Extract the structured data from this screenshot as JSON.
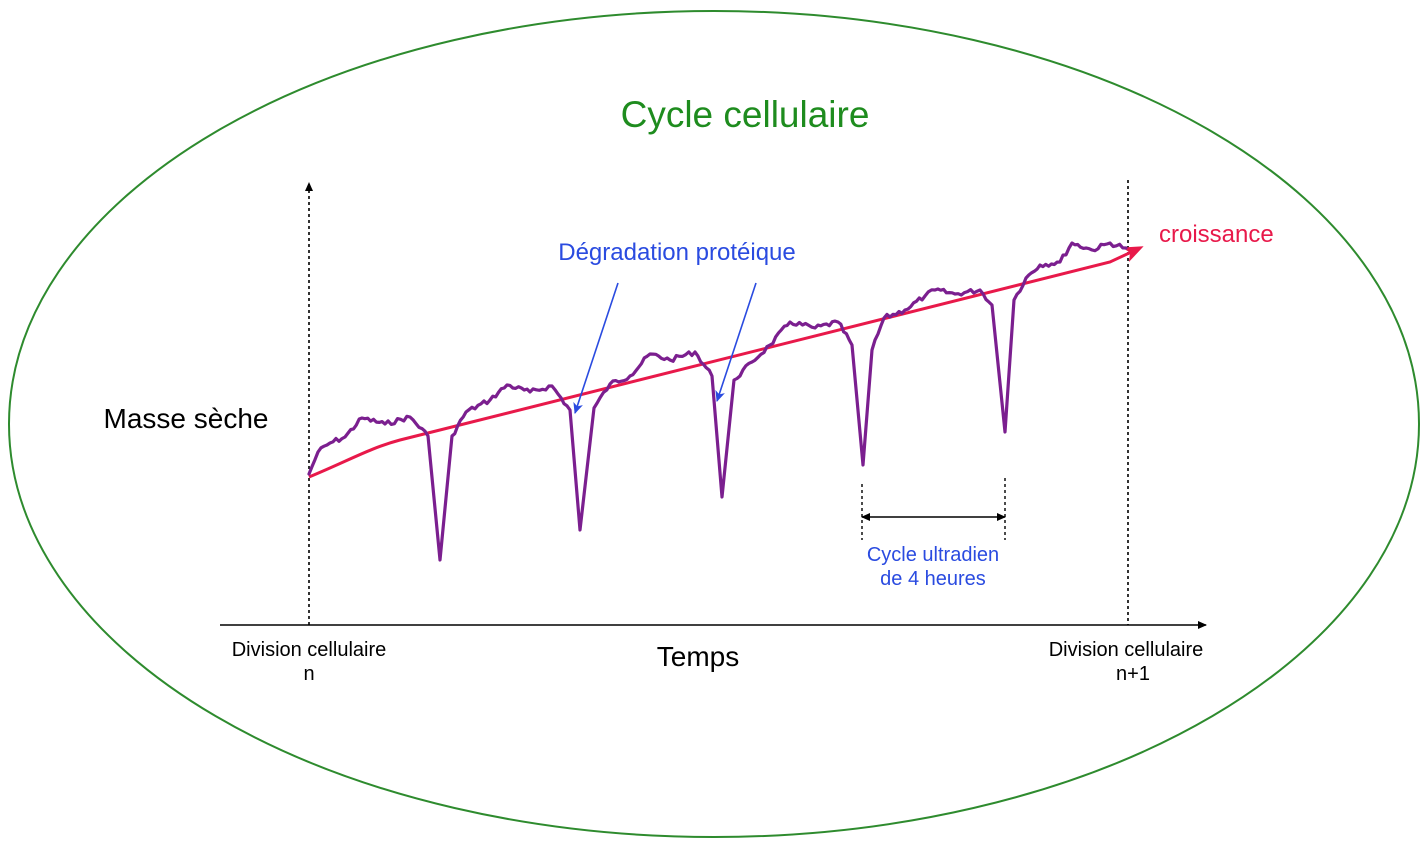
{
  "title": "Cycle cellulaire",
  "y_label": "Masse sèche",
  "x_label": "Temps",
  "growth_label": "croissance",
  "degradation_label": "Dégradation protéique",
  "ultradian_label": [
    "Cycle ultradien",
    "de 4 heures"
  ],
  "division_start": [
    "Division cellulaire",
    "n"
  ],
  "division_end": [
    "Division cellulaire",
    "n+1"
  ],
  "colors": {
    "title": "#1e8c1e",
    "ellipse": "#2e8b2e",
    "growth_line": "#e8194a",
    "mass_curve": "#7b1f8f",
    "annotation": "#2a4be0",
    "text": "#000000"
  }
}
